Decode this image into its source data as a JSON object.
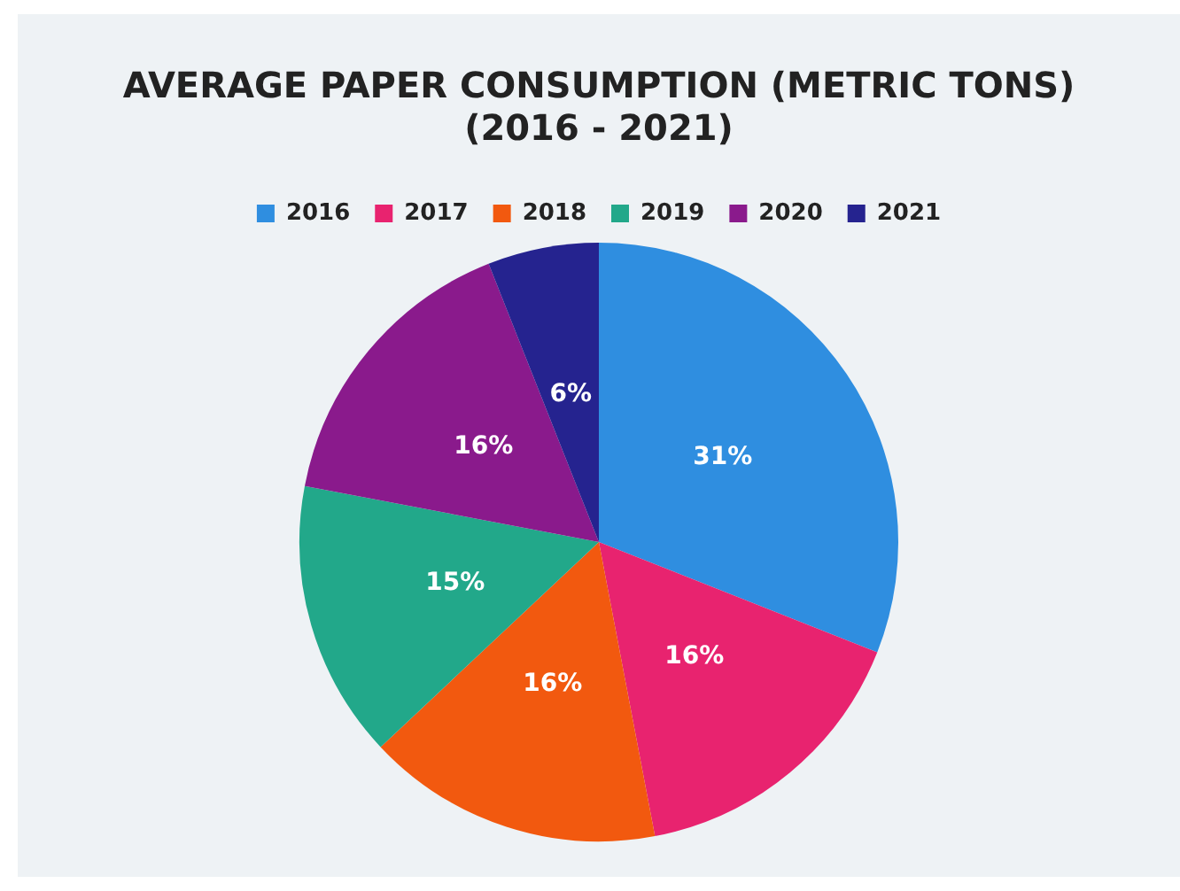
{
  "chart_data": {
    "type": "pie",
    "title": "AVERAGE PAPER CONSUMPTION (METRIC TONS)\n(2016 - 2021)",
    "categories": [
      "2016",
      "2017",
      "2018",
      "2019",
      "2020",
      "2021"
    ],
    "values": [
      31,
      16,
      16,
      15,
      16,
      6
    ],
    "colors": [
      "#2f8ee0",
      "#e8236f",
      "#f2590f",
      "#22a88a",
      "#8a1a8c",
      "#25238f"
    ],
    "value_labels": [
      "31%",
      "16%",
      "16%",
      "15%",
      "16%",
      "6%"
    ],
    "legend": "top"
  }
}
